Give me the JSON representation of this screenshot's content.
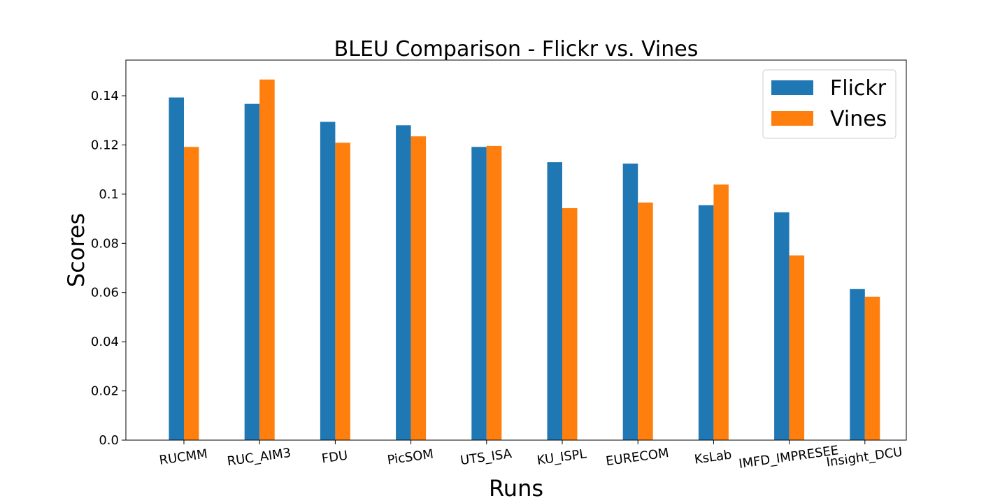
{
  "chart_data": {
    "type": "bar",
    "title": "BLEU Comparison - Flickr vs. Vines",
    "xlabel": "Runs",
    "ylabel": "Scores",
    "categories": [
      "RUCMM",
      "RUC_AIM3",
      "FDU",
      "PicSOM",
      "UTS_ISA",
      "KU_ISPL",
      "EURECOM",
      "KsLab",
      "IMFD_IMPRESEE",
      "Insight_DCU"
    ],
    "series": [
      {
        "name": "Flickr",
        "color": "#1f77b4",
        "values": [
          0.1393,
          0.1367,
          0.1294,
          0.128,
          0.1192,
          0.113,
          0.1124,
          0.0955,
          0.0926,
          0.0614
        ]
      },
      {
        "name": "Vines",
        "color": "#ff7f0e",
        "values": [
          0.1192,
          0.1466,
          0.1209,
          0.1235,
          0.1196,
          0.0943,
          0.0966,
          0.1039,
          0.0751,
          0.0583
        ]
      }
    ],
    "ylim": [
      0,
      0.1545
    ],
    "yticks": [
      {
        "value": 0.0,
        "label": "0.0"
      },
      {
        "value": 0.02,
        "label": "0.02"
      },
      {
        "value": 0.04,
        "label": "0.04"
      },
      {
        "value": 0.06,
        "label": "0.06"
      },
      {
        "value": 0.08,
        "label": "0.08"
      },
      {
        "value": 0.1,
        "label": "0.1"
      },
      {
        "value": 0.12,
        "label": "0.12"
      },
      {
        "value": 0.14,
        "label": "0.14"
      }
    ],
    "grid": false,
    "legend": "top-right"
  }
}
